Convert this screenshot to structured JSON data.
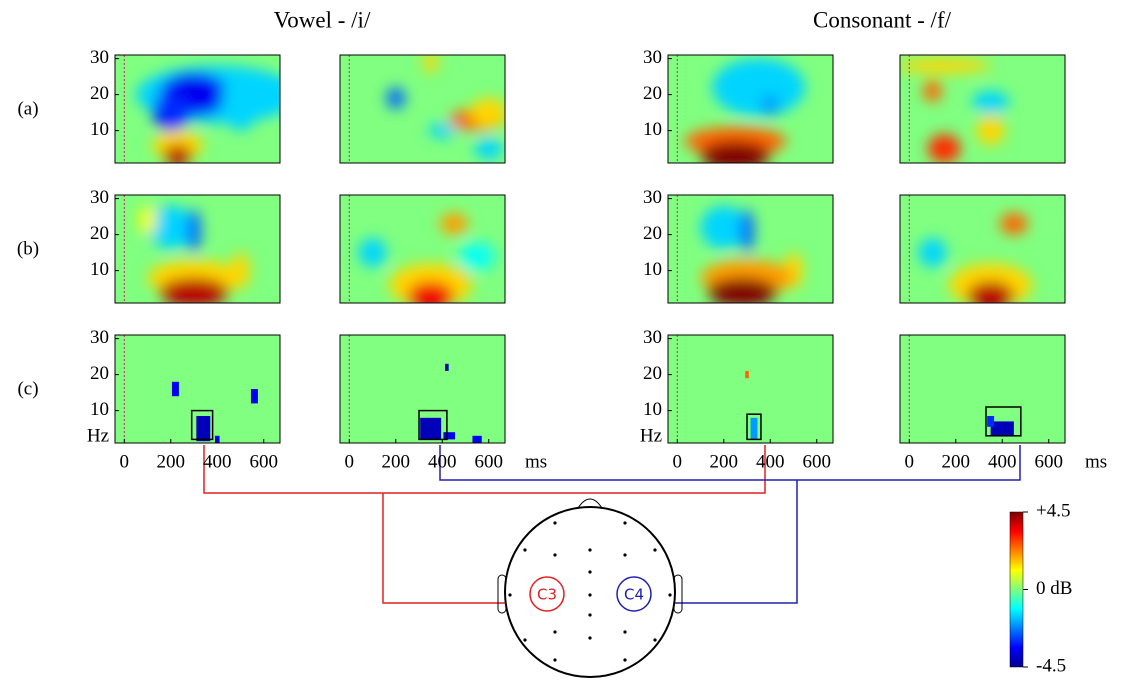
{
  "columns": [
    {
      "title": "Vowel - /i/"
    },
    {
      "title": "Consonant - /f/"
    }
  ],
  "rows": [
    "(a)",
    "(b)",
    "(c)"
  ],
  "ylim": [
    1,
    31
  ],
  "yticks": [
    10,
    20,
    30
  ],
  "y_unit": "Hz",
  "xlim": [
    -40,
    670
  ],
  "xticks": [
    0,
    200,
    400,
    600
  ],
  "x_unit": "ms",
  "panels": [
    [
      {
        "blobs": [
          [
            400,
            20,
            -1.5,
            350,
            8
          ],
          [
            300,
            20,
            -3.5,
            150,
            6
          ],
          [
            200,
            15,
            -3,
            80,
            5
          ],
          [
            500,
            18,
            -1.5,
            80,
            8
          ],
          [
            230,
            6,
            1.5,
            110,
            4
          ],
          [
            230,
            3,
            4,
            60,
            3
          ]
        ]
      },
      {
        "blobs": [
          [
            350,
            29,
            1.5,
            30,
            3
          ],
          [
            200,
            19,
            -2.5,
            40,
            3
          ],
          [
            550,
            13,
            2.5,
            120,
            3
          ],
          [
            600,
            15,
            1.5,
            80,
            4
          ],
          [
            600,
            5,
            -1.5,
            60,
            3
          ],
          [
            400,
            10,
            -1.5,
            60,
            2
          ]
        ]
      },
      {
        "blobs": [
          [
            350,
            22,
            -1.5,
            200,
            8
          ],
          [
            250,
            7,
            2.5,
            220,
            4
          ],
          [
            400,
            17,
            -2,
            40,
            3
          ],
          [
            250,
            3,
            4.5,
            150,
            4
          ]
        ]
      },
      {
        "blobs": [
          [
            150,
            28,
            1.5,
            200,
            2
          ],
          [
            100,
            21,
            2.5,
            40,
            3
          ],
          [
            350,
            18,
            -1.5,
            80,
            3
          ],
          [
            350,
            10,
            1.5,
            60,
            4
          ],
          [
            150,
            5,
            3,
            70,
            4
          ]
        ]
      }
    ],
    [
      {
        "blobs": [
          [
            200,
            22,
            -1.5,
            100,
            6
          ],
          [
            100,
            24,
            1,
            40,
            4
          ],
          [
            300,
            21,
            -2.5,
            30,
            6
          ],
          [
            500,
            10,
            1.5,
            40,
            5
          ],
          [
            300,
            8,
            1.5,
            200,
            5
          ],
          [
            300,
            4,
            4,
            150,
            4
          ]
        ]
      },
      {
        "blobs": [
          [
            100,
            15,
            -1.5,
            60,
            4
          ],
          [
            550,
            14,
            -1,
            80,
            4
          ],
          [
            450,
            23,
            2,
            60,
            3
          ],
          [
            350,
            6,
            1.5,
            180,
            6
          ],
          [
            350,
            3,
            3.5,
            100,
            4
          ]
        ]
      },
      {
        "blobs": [
          [
            200,
            22,
            -1.5,
            100,
            6
          ],
          [
            300,
            21,
            -2.5,
            30,
            6
          ],
          [
            500,
            10,
            1.5,
            40,
            5
          ],
          [
            300,
            8,
            2,
            200,
            5
          ],
          [
            280,
            4,
            4.5,
            150,
            4
          ]
        ]
      },
      {
        "blobs": [
          [
            100,
            15,
            -1.5,
            60,
            4
          ],
          [
            450,
            23,
            2.5,
            60,
            3
          ],
          [
            350,
            6,
            1.5,
            180,
            6
          ],
          [
            350,
            3,
            4,
            100,
            4
          ]
        ]
      }
    ],
    [
      {
        "blobs": [
          [
            220,
            16,
            -3.5,
            30,
            4
          ],
          [
            560,
            14,
            -3.5,
            30,
            4
          ],
          [
            340,
            5,
            -4,
            60,
            7
          ],
          [
            400,
            2,
            -3.5,
            20,
            2
          ]
        ],
        "box": [
          290,
          380,
          2,
          10
        ]
      },
      {
        "blobs": [
          [
            420,
            22,
            -4,
            15,
            2
          ],
          [
            350,
            5,
            -4,
            90,
            6
          ],
          [
            430,
            3,
            -3.5,
            50,
            2
          ],
          [
            550,
            2,
            -3.5,
            40,
            2
          ]
        ],
        "box": [
          300,
          420,
          2,
          10
        ]
      },
      {
        "blobs": [
          [
            300,
            20,
            2.5,
            15,
            2
          ],
          [
            330,
            5,
            -2,
            30,
            6
          ]
        ],
        "box": [
          300,
          360,
          2,
          9
        ]
      },
      {
        "blobs": [
          [
            400,
            5,
            -4,
            100,
            4
          ],
          [
            350,
            7,
            -3,
            30,
            3
          ]
        ],
        "box": [
          330,
          480,
          3,
          11
        ]
      }
    ]
  ],
  "colorbar": {
    "max": {
      "value": 4.5,
      "label": "+4.5"
    },
    "mid": {
      "value": 0,
      "label": "0 dB"
    },
    "min": {
      "value": -4.5,
      "label": "-4.5"
    }
  },
  "electrodes": [
    "C3",
    "C4"
  ]
}
